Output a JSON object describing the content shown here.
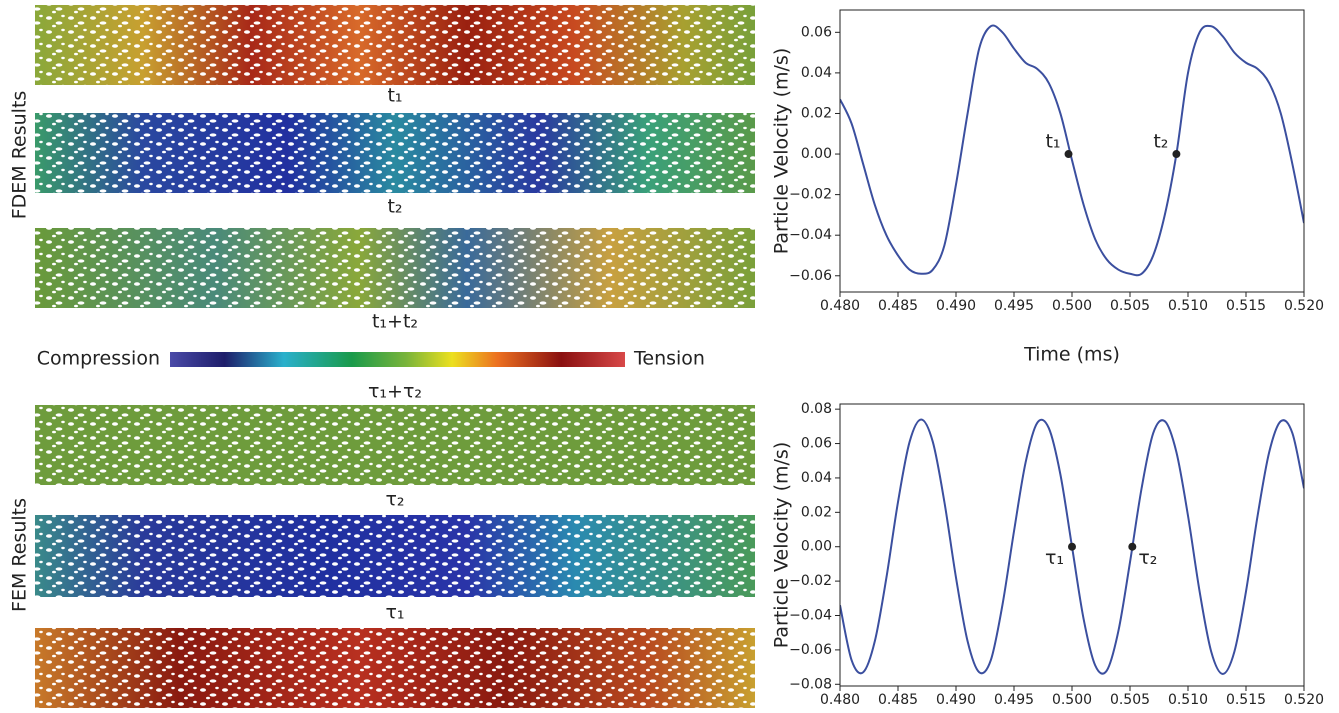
{
  "chart_data": [
    {
      "type": "line",
      "ylabel": "Particle Velocity (m/s)",
      "xlabel": "Time (ms)",
      "x": [
        0.48,
        0.481,
        0.482,
        0.483,
        0.484,
        0.485,
        0.486,
        0.487,
        0.488,
        0.489,
        0.49,
        0.491,
        0.492,
        0.493,
        0.494,
        0.495,
        0.496,
        0.497,
        0.498,
        0.499,
        0.5,
        0.501,
        0.502,
        0.503,
        0.504,
        0.505,
        0.506,
        0.507,
        0.508,
        0.509,
        0.51,
        0.511,
        0.512,
        0.513,
        0.514,
        0.515,
        0.516,
        0.517,
        0.518,
        0.519,
        0.52
      ],
      "series": [
        {
          "color": "#3b4f9f",
          "values": [
            0.027,
            0.015,
            -0.005,
            -0.025,
            -0.04,
            -0.05,
            -0.057,
            -0.059,
            -0.057,
            -0.045,
            -0.015,
            0.02,
            0.052,
            0.063,
            0.06,
            0.052,
            0.045,
            0.042,
            0.035,
            0.02,
            -0.003,
            -0.025,
            -0.042,
            -0.052,
            -0.057,
            -0.059,
            -0.059,
            -0.05,
            -0.03,
            0.0,
            0.04,
            0.06,
            0.063,
            0.058,
            0.05,
            0.045,
            0.042,
            0.035,
            0.02,
            -0.005,
            -0.034
          ]
        }
      ],
      "annotations": [
        {
          "label": "t₁",
          "x": 0.4997,
          "y": 0
        },
        {
          "label": "t₂",
          "x": 0.509,
          "y": 0
        }
      ],
      "xlim": [
        0.48,
        0.52
      ],
      "xticks": [
        {
          "value": 0.48,
          "label": "0.480"
        },
        0.485,
        {
          "value": 0.49,
          "label": "0.490"
        },
        0.495,
        {
          "value": 0.5,
          "label": "0.500"
        },
        0.505,
        {
          "value": 0.51,
          "label": "0.510"
        },
        0.515,
        {
          "value": 0.52,
          "label": "0.520"
        }
      ],
      "ylim": [
        -0.068,
        0.071
      ],
      "yticks": [
        {
          "value": -0.06,
          "label": "−0.06"
        },
        {
          "value": -0.04,
          "label": "−0.04"
        },
        {
          "value": -0.02,
          "label": "−0.02"
        },
        {
          "value": 0,
          "label": "0.00"
        },
        {
          "value": 0.02,
          "label": "0.02"
        },
        {
          "value": 0.04,
          "label": "0.04"
        },
        0.06
      ]
    },
    {
      "type": "line",
      "ylabel": "Particle Velocity (m/s)",
      "x": [
        0.48,
        0.481,
        0.482,
        0.483,
        0.484,
        0.485,
        0.486,
        0.487,
        0.488,
        0.489,
        0.49,
        0.491,
        0.492,
        0.493,
        0.494,
        0.495,
        0.496,
        0.497,
        0.498,
        0.499,
        0.5,
        0.501,
        0.502,
        0.503,
        0.504,
        0.505,
        0.506,
        0.507,
        0.508,
        0.509,
        0.51,
        0.511,
        0.512,
        0.513,
        0.514,
        0.515,
        0.516,
        0.517,
        0.518,
        0.519,
        0.52
      ],
      "series": [
        {
          "color": "#3b4f9f",
          "values": [
            -0.034,
            -0.066,
            -0.073,
            -0.055,
            -0.018,
            0.026,
            0.061,
            0.074,
            0.061,
            0.026,
            -0.018,
            -0.055,
            -0.073,
            -0.066,
            -0.034,
            0.009,
            0.049,
            0.072,
            0.069,
            0.042,
            0.0,
            -0.042,
            -0.069,
            -0.072,
            -0.049,
            -0.009,
            0.034,
            0.066,
            0.073,
            0.055,
            0.018,
            -0.026,
            -0.061,
            -0.074,
            -0.061,
            -0.026,
            0.018,
            0.055,
            0.073,
            0.066,
            0.034
          ]
        }
      ],
      "annotations": [
        {
          "label": "τ₁",
          "x": 0.5,
          "y": 0
        },
        {
          "label": "τ₂",
          "x": 0.5052,
          "y": 0
        }
      ],
      "xlim": [
        0.48,
        0.52
      ],
      "xticks": [
        {
          "value": 0.48,
          "label": "0.480"
        },
        0.485,
        {
          "value": 0.49,
          "label": "0.490"
        },
        0.495,
        {
          "value": 0.5,
          "label": "0.500"
        },
        0.505,
        {
          "value": 0.51,
          "label": "0.510"
        },
        0.515,
        {
          "value": 0.52,
          "label": "0.520"
        }
      ],
      "ylim": [
        -0.081,
        0.083
      ],
      "yticks": [
        {
          "value": -0.08,
          "label": "−0.08"
        },
        {
          "value": -0.06,
          "label": "−0.06"
        },
        {
          "value": -0.04,
          "label": "−0.04"
        },
        {
          "value": -0.02,
          "label": "−0.02"
        },
        {
          "value": 0,
          "label": "0.00"
        },
        {
          "value": 0.02,
          "label": "0.02"
        },
        {
          "value": 0.04,
          "label": "0.04"
        },
        {
          "value": 0.06,
          "label": "0.06"
        },
        {
          "value": 0.08,
          "label": "0.08"
        }
      ]
    }
  ],
  "panels": {
    "fdem_title": "FDEM Results",
    "fem_title": "FEM Results",
    "fdem_labels": [
      "t₁",
      "t₂",
      "t₁+t₂"
    ],
    "fem_labels": [
      "τ₁+τ₂",
      "τ₂",
      "τ₁"
    ],
    "colorbar": {
      "left": "Compression",
      "right": "Tension"
    }
  }
}
